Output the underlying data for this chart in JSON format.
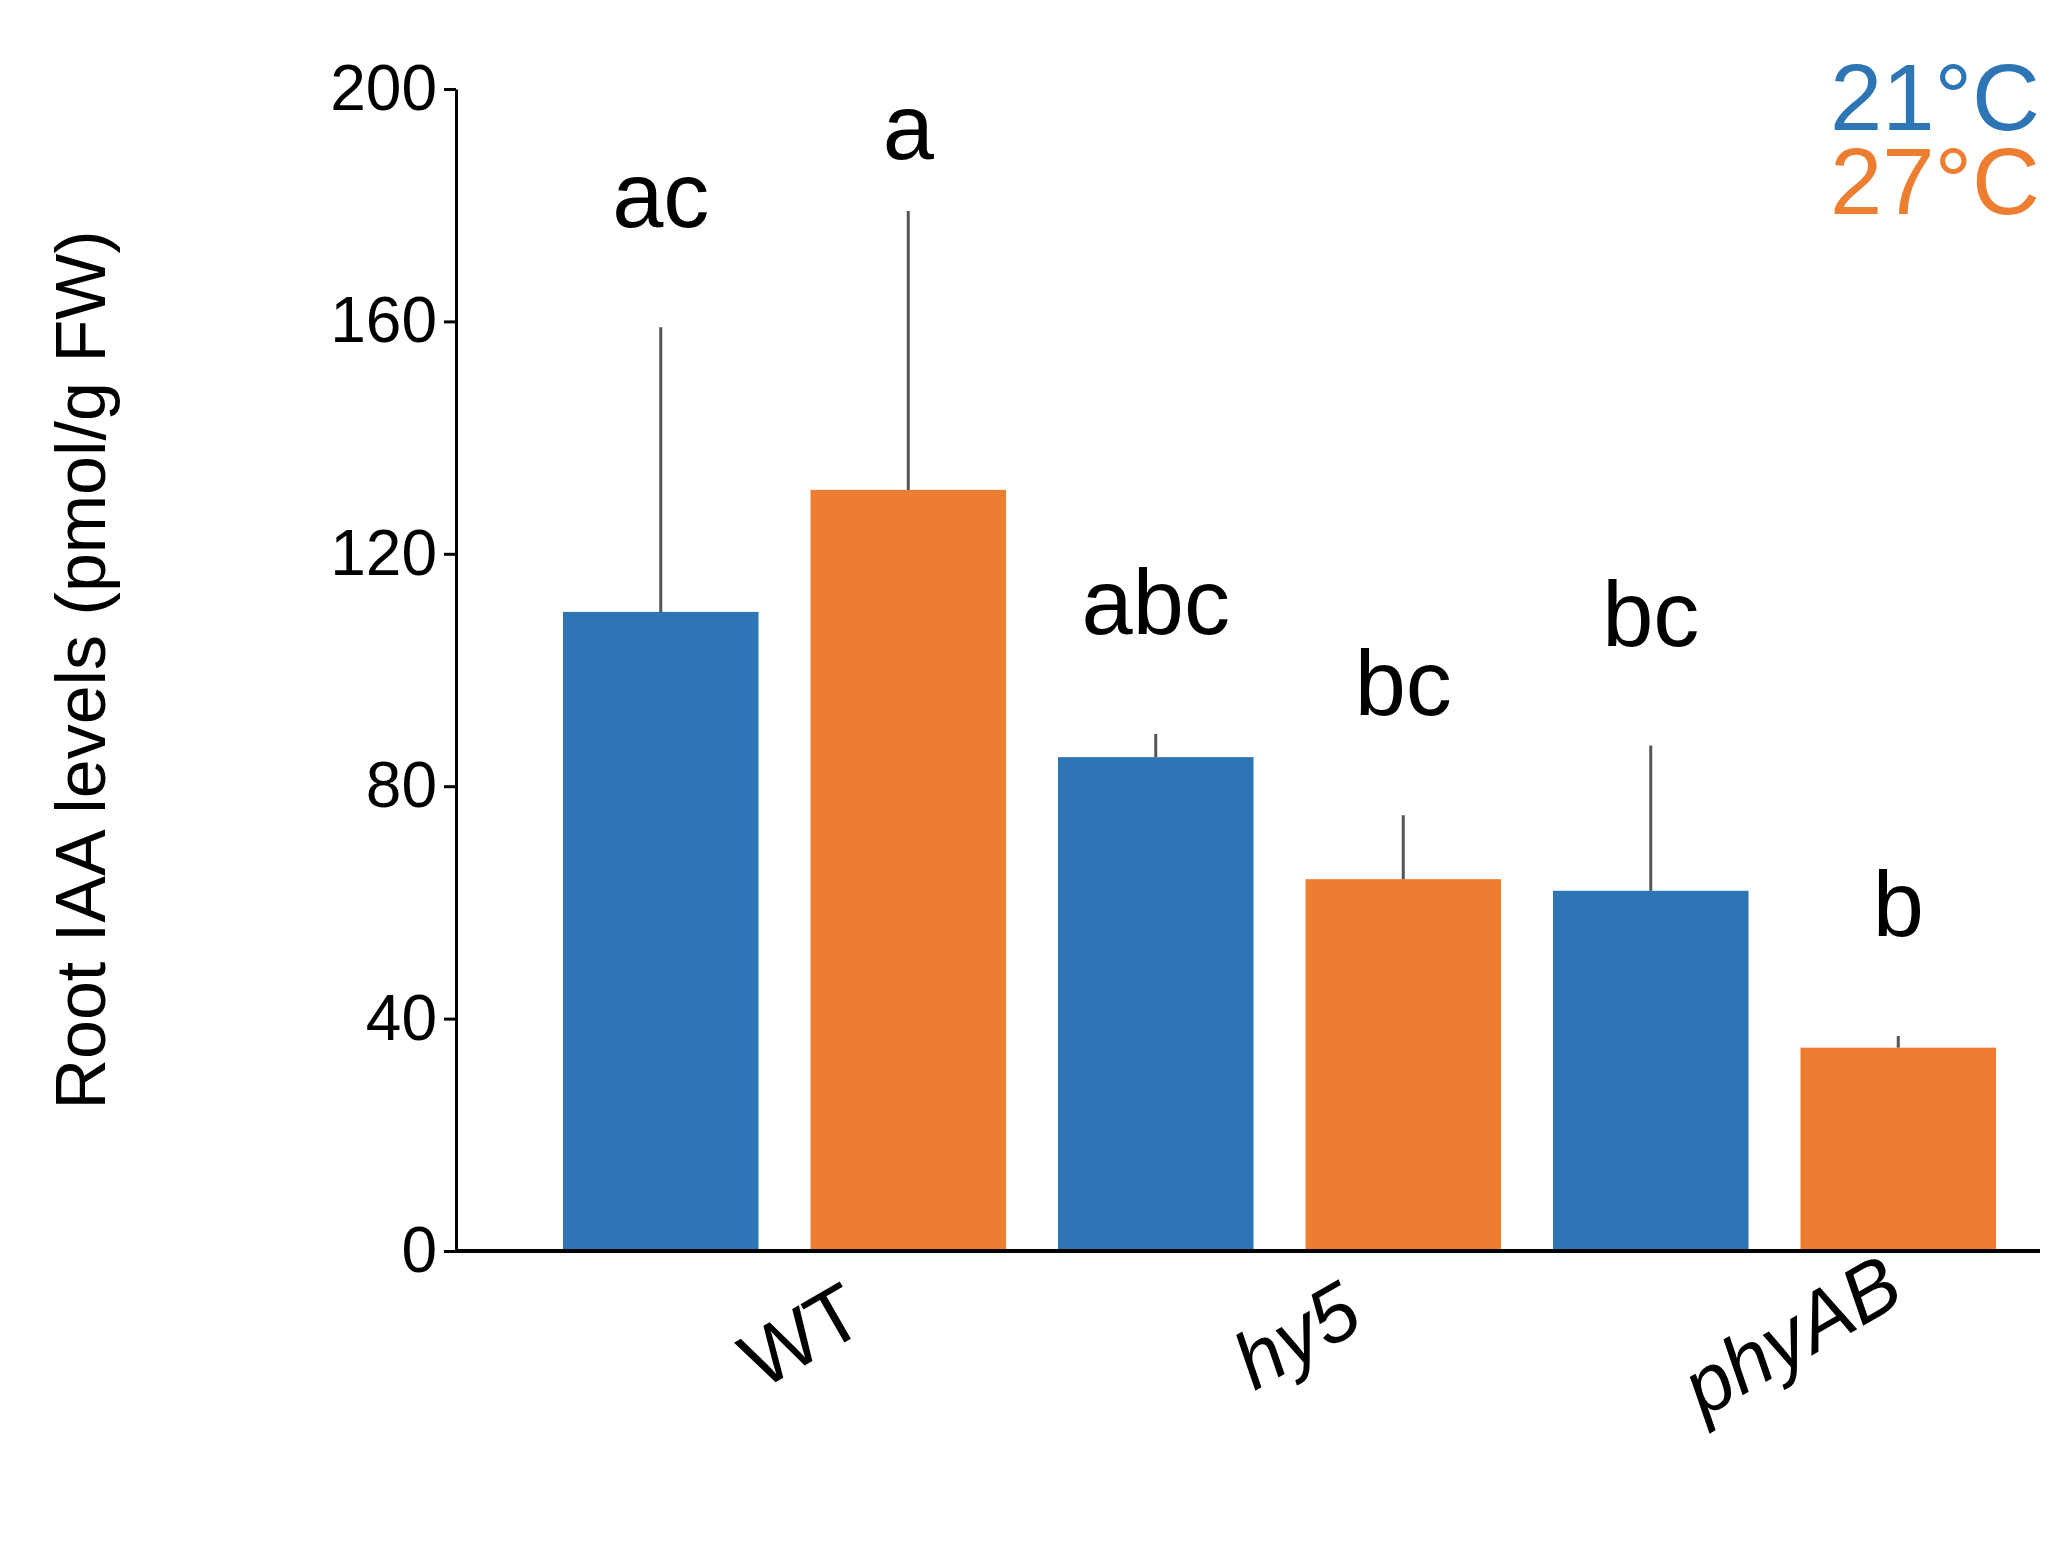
{
  "chart_data": {
    "type": "bar",
    "ylabel": "Root IAA levels (pmol/g FW)",
    "categories": [
      "WT",
      "hy5",
      "phyAB"
    ],
    "series": [
      {
        "name": "21°C",
        "color": "#2e75b6",
        "values": [
          110,
          85,
          62
        ],
        "errors": [
          [
            110,
            159
          ],
          [
            85,
            89
          ],
          [
            62,
            87
          ]
        ]
      },
      {
        "name": "27°C",
        "color": "#ed7d31",
        "values": [
          131,
          64,
          35
        ],
        "errors": [
          [
            131,
            179
          ],
          [
            64,
            75
          ],
          [
            35,
            37
          ]
        ]
      }
    ],
    "ylim": [
      0,
      200
    ],
    "yticks": [
      0,
      40,
      80,
      120,
      160,
      200
    ],
    "grid": false,
    "legend": "top right",
    "annotations": [
      "ac",
      "a",
      "abc",
      "bc",
      "bc",
      "b"
    ]
  }
}
